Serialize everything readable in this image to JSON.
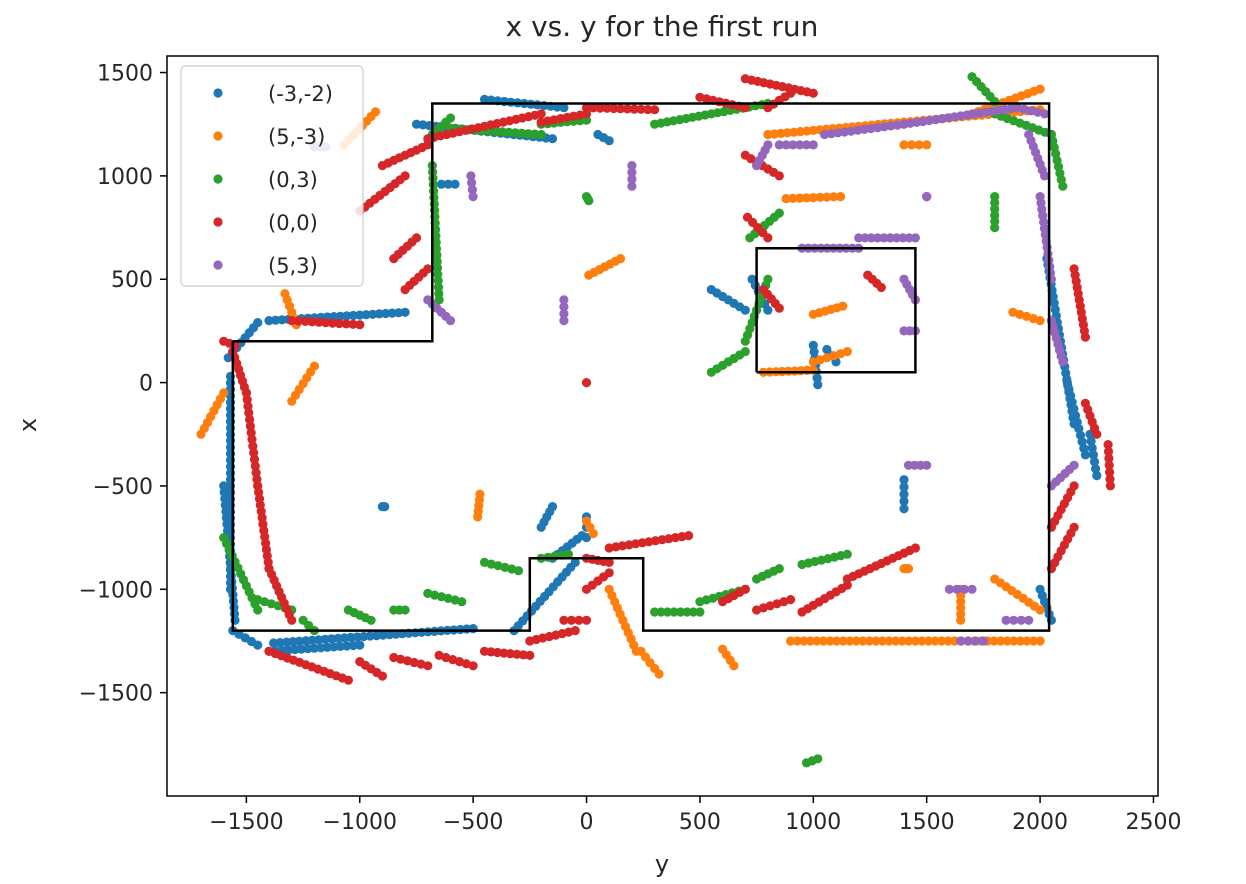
{
  "chart_data": {
    "type": "scatter",
    "title": "x vs. y for the first run",
    "xlabel": "y",
    "ylabel": "x",
    "xlim": [
      -1850,
      2520
    ],
    "ylim": [
      -2000,
      1580
    ],
    "xticks": [
      -1500,
      -1000,
      -500,
      0,
      500,
      1000,
      1500,
      2000,
      2500
    ],
    "yticks": [
      -1500,
      -1000,
      -500,
      0,
      500,
      1000,
      1500
    ],
    "xtick_labels": [
      "−1500",
      "−1000",
      "−500",
      "0",
      "500",
      "1000",
      "1500",
      "2000",
      "2500"
    ],
    "ytick_labels": [
      "−1500",
      "−1000",
      "−500",
      "0",
      "500",
      "1000",
      "1500"
    ],
    "grid": false,
    "legend_position": "upper-left",
    "series": [
      {
        "name": "(-3,-2)",
        "color": "#1f77b4",
        "segments": [
          [
            -1570,
            30,
            -1570,
            -1000
          ],
          [
            -1600,
            -500,
            -1550,
            -1150
          ],
          [
            -1580,
            120,
            -1450,
            290
          ],
          [
            -1400,
            300,
            -800,
            340
          ],
          [
            -1560,
            -1200,
            -1450,
            -1270
          ],
          [
            -1380,
            -1260,
            -500,
            -1190
          ],
          [
            -1400,
            -1300,
            -1000,
            -1270
          ],
          [
            -320,
            -1200,
            -50,
            -870
          ],
          [
            -150,
            -850,
            -20,
            -740
          ],
          [
            -200,
            -700,
            -150,
            -600
          ],
          [
            -750,
            1250,
            -150,
            1180
          ],
          [
            -450,
            1370,
            -100,
            1330
          ],
          [
            -640,
            960,
            -580,
            960
          ],
          [
            50,
            1200,
            100,
            1170
          ],
          [
            1000,
            180,
            1020,
            -10
          ],
          [
            1060,
            160,
            1100,
            100
          ],
          [
            730,
            500,
            800,
            350
          ],
          [
            550,
            450,
            700,
            350
          ],
          [
            2030,
            600,
            2150,
            -200
          ],
          [
            2120,
            0,
            2200,
            -350
          ],
          [
            2220,
            -250,
            2250,
            -450
          ],
          [
            1400,
            -470,
            1400,
            -610
          ],
          [
            2000,
            -1000,
            2050,
            -1150
          ]
        ],
        "points": [
          [
            -890,
            -600
          ],
          [
            -900,
            -600
          ],
          [
            0,
            -650
          ],
          [
            0,
            -700
          ],
          [
            0,
            -750
          ]
        ]
      },
      {
        "name": "(5,-3)",
        "color": "#ff7f0e",
        "segments": [
          [
            -1700,
            -250,
            -1600,
            -50
          ],
          [
            -1300,
            -90,
            -1200,
            80
          ],
          [
            -1330,
            430,
            -1280,
            280
          ],
          [
            -1070,
            1150,
            -930,
            1310
          ],
          [
            -470,
            -540,
            -480,
            -650
          ],
          [
            10,
            520,
            150,
            600
          ],
          [
            0,
            -670,
            30,
            -730
          ],
          [
            100,
            -1000,
            220,
            -1300
          ],
          [
            240,
            -1300,
            320,
            -1410
          ],
          [
            600,
            -1290,
            650,
            -1370
          ],
          [
            880,
            890,
            1120,
            900
          ],
          [
            1000,
            330,
            1130,
            370
          ],
          [
            780,
            50,
            1000,
            60
          ],
          [
            1000,
            100,
            1150,
            150
          ],
          [
            800,
            1200,
            2000,
            1320
          ],
          [
            1400,
            -900,
            1420,
            -900
          ],
          [
            1650,
            -1000,
            1650,
            -1150
          ],
          [
            1800,
            -950,
            2000,
            -1100
          ],
          [
            900,
            -1250,
            2000,
            -1250
          ],
          [
            1400,
            1150,
            1500,
            1150
          ],
          [
            1700,
            1300,
            2000,
            1420
          ],
          [
            1880,
            340,
            2000,
            300
          ]
        ],
        "points": []
      },
      {
        "name": "(0,3)",
        "color": "#2ca02c",
        "segments": [
          [
            -1600,
            -750,
            -1450,
            -1100
          ],
          [
            -1450,
            -1050,
            -1300,
            -1100
          ],
          [
            -1250,
            -1150,
            -1200,
            -1200
          ],
          [
            -1050,
            -1100,
            -950,
            -1150
          ],
          [
            -850,
            -1100,
            -800,
            -1100
          ],
          [
            -700,
            -1020,
            -550,
            -1060
          ],
          [
            -450,
            -870,
            -300,
            -910
          ],
          [
            -200,
            -850,
            -80,
            -830
          ],
          [
            300,
            -1110,
            500,
            -1110
          ],
          [
            500,
            -1060,
            700,
            -1000
          ],
          [
            750,
            -950,
            850,
            -900
          ],
          [
            950,
            -880,
            1150,
            -830
          ],
          [
            -680,
            1050,
            -650,
            400
          ],
          [
            -680,
            1200,
            -600,
            1280
          ],
          [
            -600,
            1230,
            -200,
            1200
          ],
          [
            -200,
            1250,
            0,
            1270
          ],
          [
            300,
            1250,
            800,
            1350
          ],
          [
            0,
            900,
            10,
            880
          ],
          [
            550,
            50,
            700,
            150
          ],
          [
            700,
            200,
            800,
            500
          ],
          [
            720,
            700,
            850,
            820
          ],
          [
            1700,
            1480,
            1800,
            1360
          ],
          [
            1800,
            1300,
            2050,
            1200
          ],
          [
            2050,
            1200,
            2100,
            950
          ],
          [
            1800,
            900,
            1800,
            750
          ],
          [
            970,
            -1840,
            1020,
            -1820
          ]
        ],
        "points": []
      },
      {
        "name": "(0,0)",
        "color": "#d62728",
        "segments": [
          [
            -1600,
            200,
            -1550,
            180
          ],
          [
            -1560,
            150,
            -1500,
            -50
          ],
          [
            -1500,
            -50,
            -1450,
            -500
          ],
          [
            -1450,
            -500,
            -1400,
            -900
          ],
          [
            -1400,
            -900,
            -1300,
            -1150
          ],
          [
            -1400,
            -1300,
            -1050,
            -1440
          ],
          [
            -1000,
            -1350,
            -900,
            -1420
          ],
          [
            -850,
            -1330,
            -700,
            -1370
          ],
          [
            -650,
            -1320,
            -500,
            -1370
          ],
          [
            -450,
            -1300,
            -250,
            -1320
          ],
          [
            -250,
            -1250,
            -50,
            -1200
          ],
          [
            -100,
            -1150,
            0,
            -1150
          ],
          [
            -1300,
            300,
            -1000,
            280
          ],
          [
            -1000,
            830,
            -800,
            1000
          ],
          [
            -850,
            600,
            -750,
            700
          ],
          [
            -800,
            450,
            -700,
            550
          ],
          [
            -900,
            1050,
            -700,
            1150
          ],
          [
            -700,
            1180,
            -200,
            1300
          ],
          [
            -200,
            1260,
            0,
            1300
          ],
          [
            0,
            1330,
            300,
            1320
          ],
          [
            500,
            1380,
            700,
            1330
          ],
          [
            700,
            1470,
            1000,
            1400
          ],
          [
            800,
            1330,
            900,
            1400
          ],
          [
            710,
            800,
            800,
            700
          ],
          [
            700,
            1100,
            850,
            1000
          ],
          [
            780,
            450,
            850,
            360
          ],
          [
            1240,
            520,
            1300,
            460
          ],
          [
            0,
            -850,
            100,
            -870
          ],
          [
            100,
            -800,
            450,
            -740
          ],
          [
            0,
            -1000,
            100,
            -920
          ],
          [
            600,
            -1060,
            700,
            -1000
          ],
          [
            750,
            -1100,
            900,
            -1050
          ],
          [
            950,
            -1110,
            1150,
            -980
          ],
          [
            1150,
            -950,
            1450,
            -800
          ],
          [
            2150,
            550,
            2200,
            220
          ],
          [
            2200,
            -100,
            2250,
            -250
          ],
          [
            2300,
            -300,
            2310,
            -500
          ],
          [
            2050,
            -700,
            2150,
            -500
          ],
          [
            2050,
            -900,
            2150,
            -700
          ]
        ],
        "points": [
          [
            0,
            0
          ]
        ]
      },
      {
        "name": "(5,3)",
        "color": "#9467bd",
        "segments": [
          [
            -1150,
            1140,
            -1200,
            1140
          ],
          [
            -510,
            1000,
            -500,
            900
          ],
          [
            200,
            1050,
            200,
            950
          ],
          [
            -600,
            300,
            -700,
            400
          ],
          [
            -100,
            300,
            -100,
            400
          ],
          [
            750,
            1050,
            800,
            1150
          ],
          [
            850,
            1150,
            1000,
            1150
          ],
          [
            1050,
            1200,
            1400,
            1250
          ],
          [
            1400,
            1250,
            1900,
            1330
          ],
          [
            1900,
            1330,
            2020,
            1300
          ],
          [
            1950,
            1200,
            2020,
            1000
          ],
          [
            2000,
            900,
            2050,
            500
          ],
          [
            2050,
            300,
            2100,
            100
          ],
          [
            2050,
            -500,
            2150,
            -400
          ],
          [
            1850,
            -1150,
            1950,
            -1150
          ],
          [
            1650,
            -1250,
            1750,
            -1250
          ],
          [
            1600,
            -1000,
            1700,
            -1000
          ],
          [
            950,
            650,
            1200,
            650
          ],
          [
            1200,
            700,
            1450,
            700
          ],
          [
            1400,
            500,
            1450,
            400
          ],
          [
            1400,
            250,
            1450,
            250
          ],
          [
            1420,
            -400,
            1500,
            -400
          ],
          [
            1500,
            900,
            1500,
            900
          ]
        ],
        "points": []
      }
    ],
    "polygons": [
      [
        [
          -1560,
          200
        ],
        [
          -680,
          200
        ],
        [
          -680,
          1350
        ],
        [
          2040,
          1350
        ],
        [
          2040,
          -1200
        ],
        [
          250,
          -1200
        ],
        [
          250,
          -850
        ],
        [
          -250,
          -850
        ],
        [
          -250,
          -1200
        ],
        [
          -1560,
          -1200
        ],
        [
          -1560,
          200
        ]
      ],
      [
        [
          750,
          50
        ],
        [
          1450,
          50
        ],
        [
          1450,
          650
        ],
        [
          750,
          650
        ],
        [
          750,
          50
        ]
      ]
    ]
  }
}
